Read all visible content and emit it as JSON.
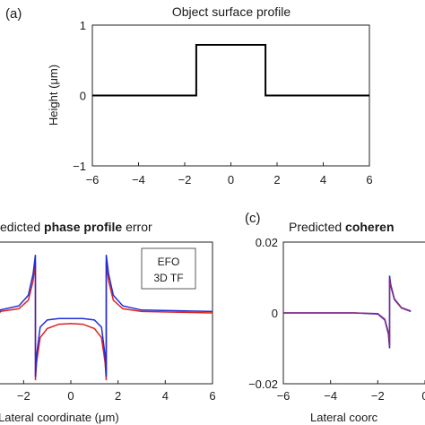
{
  "chart_data": [
    {
      "panel_label": "(a)",
      "type": "line",
      "title": "Object surface profile",
      "xlabel": "",
      "ylabel": "Height (μm)",
      "xlim": [
        -6,
        6
      ],
      "ylim": [
        -1,
        1
      ],
      "xticks": [
        "−6",
        "−4",
        "−2",
        "0",
        "2",
        "4",
        "6"
      ],
      "yticks": [
        "1",
        "0",
        "−1"
      ],
      "grid": false,
      "series": [
        {
          "color": "#000000",
          "x": [
            -6,
            -1.5,
            -1.5,
            1.5,
            1.5,
            6
          ],
          "y": [
            0,
            0,
            0.72,
            0.72,
            0,
            0
          ]
        }
      ]
    },
    {
      "panel_label": "",
      "type": "line",
      "title_parts": [
        {
          "text": "edicted ",
          "bold": false
        },
        {
          "text": "phase profile",
          "bold": true
        },
        {
          "text": " error",
          "bold": false
        }
      ],
      "xlabel": "Lateral coordinate (μm)",
      "ylabel": "",
      "xlim": [
        -6,
        6
      ],
      "ylim": [
        -1,
        1
      ],
      "xticks": [
        "−2",
        "0",
        "2",
        "4",
        "6"
      ],
      "xtick_values": [
        -2,
        0,
        2,
        4,
        6
      ],
      "grid": false,
      "legend": {
        "position": "top-right",
        "entries": [
          "EFO",
          "3D TF"
        ]
      },
      "series": [
        {
          "name": "EFO",
          "color": "#1f2fd6",
          "x": [
            -8,
            -3,
            -2.2,
            -1.8,
            -1.6,
            -1.5,
            -1.5,
            -1.45,
            -1.3,
            -1,
            -0.5,
            0,
            0.5,
            1,
            1.3,
            1.45,
            1.5,
            1.5,
            1.6,
            1.8,
            2.2,
            3,
            6
          ],
          "y": [
            0.02,
            0.04,
            0.1,
            0.25,
            0.55,
            0.82,
            -0.9,
            -0.6,
            -0.2,
            -0.1,
            -0.08,
            -0.08,
            -0.08,
            -0.1,
            -0.2,
            -0.6,
            -0.9,
            0.82,
            0.55,
            0.25,
            0.1,
            0.04,
            0.02
          ]
        },
        {
          "name": "3D TF",
          "color": "#e02020",
          "x": [
            -8,
            -3,
            -2.2,
            -1.8,
            -1.6,
            -1.5,
            -1.5,
            -1.45,
            -1.3,
            -1,
            -0.5,
            0,
            0.5,
            1,
            1.3,
            1.45,
            1.5,
            1.5,
            1.6,
            1.8,
            2.2,
            3,
            6
          ],
          "y": [
            0.0,
            0.02,
            0.06,
            0.18,
            0.45,
            0.72,
            -0.95,
            -0.7,
            -0.35,
            -0.22,
            -0.16,
            -0.15,
            -0.16,
            -0.22,
            -0.35,
            -0.7,
            -0.95,
            0.72,
            0.45,
            0.18,
            0.06,
            0.02,
            0.0
          ]
        }
      ]
    },
    {
      "panel_label": "(c)",
      "type": "line",
      "title_parts": [
        {
          "text": "Predicted ",
          "bold": false
        },
        {
          "text": "coheren",
          "bold": true
        }
      ],
      "xlabel": "Lateral coorc",
      "ylabel": "",
      "xlim": [
        -6,
        6
      ],
      "ylim": [
        -0.02,
        0.02
      ],
      "xticks": [
        "−6",
        "−4",
        "−2",
        "0"
      ],
      "xtick_values": [
        -6,
        -4,
        -2,
        0
      ],
      "yticks": [
        "0.02",
        "0",
        "−0.02"
      ],
      "grid": false,
      "series": [
        {
          "name": "EFO",
          "color": "#1f2fd6",
          "x": [
            -6,
            -3,
            -2,
            -1.7,
            -1.55,
            -1.5,
            -1.5,
            -1.45,
            -1.3,
            -1.0,
            -0.6
          ],
          "y": [
            0,
            0,
            -0.0003,
            -0.002,
            -0.006,
            -0.01,
            0.0105,
            0.008,
            0.004,
            0.0015,
            0.0005
          ]
        },
        {
          "name": "3D TF",
          "color": "#8a2a7a",
          "x": [
            -6,
            -3,
            -2,
            -1.7,
            -1.55,
            -1.5,
            -1.5,
            -1.45,
            -1.3,
            -1.0,
            -0.6
          ],
          "y": [
            0,
            0,
            -0.0002,
            -0.0018,
            -0.0055,
            -0.0095,
            0.0098,
            0.0075,
            0.0038,
            0.0014,
            0.0004
          ]
        }
      ]
    }
  ]
}
